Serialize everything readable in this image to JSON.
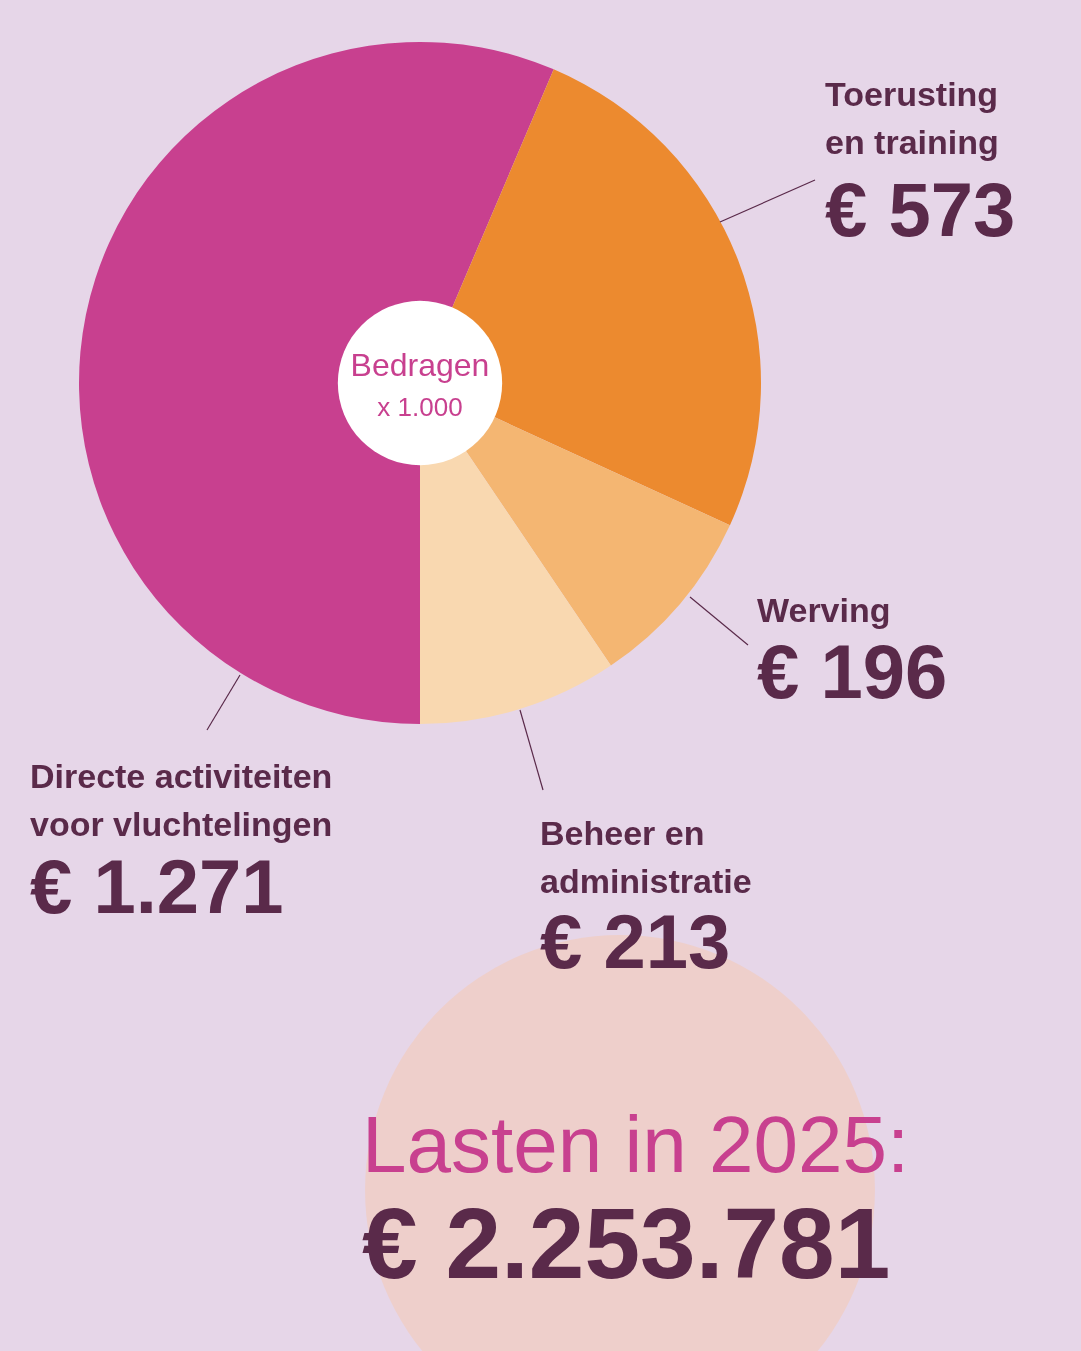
{
  "chart_data": {
    "type": "donut",
    "categories": [
      "Directe activiteiten\nvoor vluchtelingen",
      "Toerusting\nen training",
      "Werving",
      "Beheer en\nadministratie"
    ],
    "values": [
      1271,
      573,
      196,
      213
    ],
    "colors": [
      "#c8408f",
      "#ec8a2f",
      "#f4b672",
      "#f9d8b0"
    ],
    "value_labels": [
      "€ 1.271",
      "€ 573",
      "€ 196",
      "€ 213"
    ],
    "annotations": [
      "Bedragen",
      "x 1.000",
      "Lasten in 2025:",
      "€  2.253.781"
    ]
  }
}
